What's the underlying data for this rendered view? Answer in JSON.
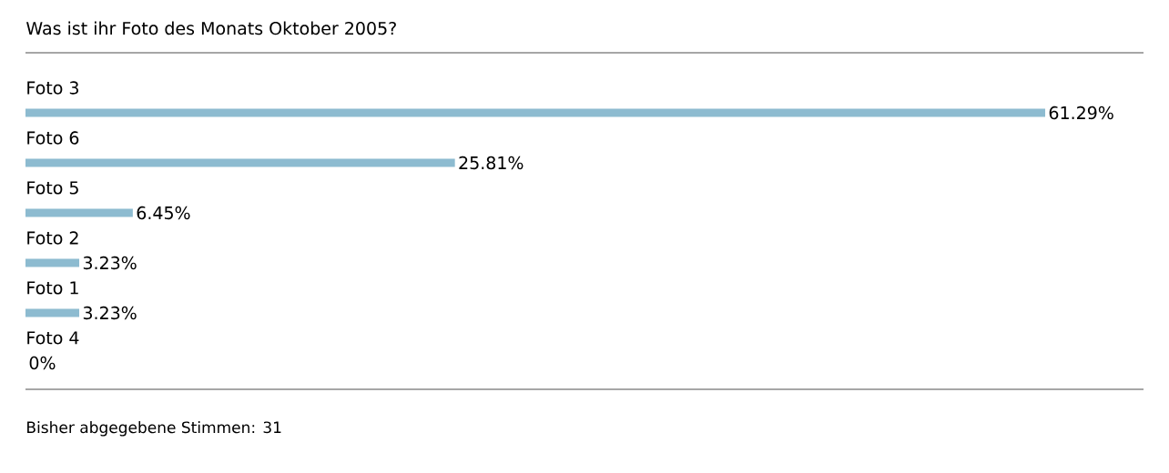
{
  "chart_data": {
    "type": "bar",
    "orientation": "horizontal",
    "title": "Was ist ihr Foto des Monats Oktober 2005?",
    "categories": [
      "Foto 3",
      "Foto 6",
      "Foto 5",
      "Foto 2",
      "Foto 1",
      "Foto 4"
    ],
    "values": [
      61.29,
      25.81,
      6.45,
      3.23,
      3.23,
      0
    ],
    "value_labels": [
      "61.29%",
      "25.81%",
      "6.45%",
      "3.23%",
      "3.23%",
      "0%"
    ],
    "color": "#8dbbd0",
    "annotations": [
      "Bisher abgegebene Stimmen: 31"
    ]
  }
}
